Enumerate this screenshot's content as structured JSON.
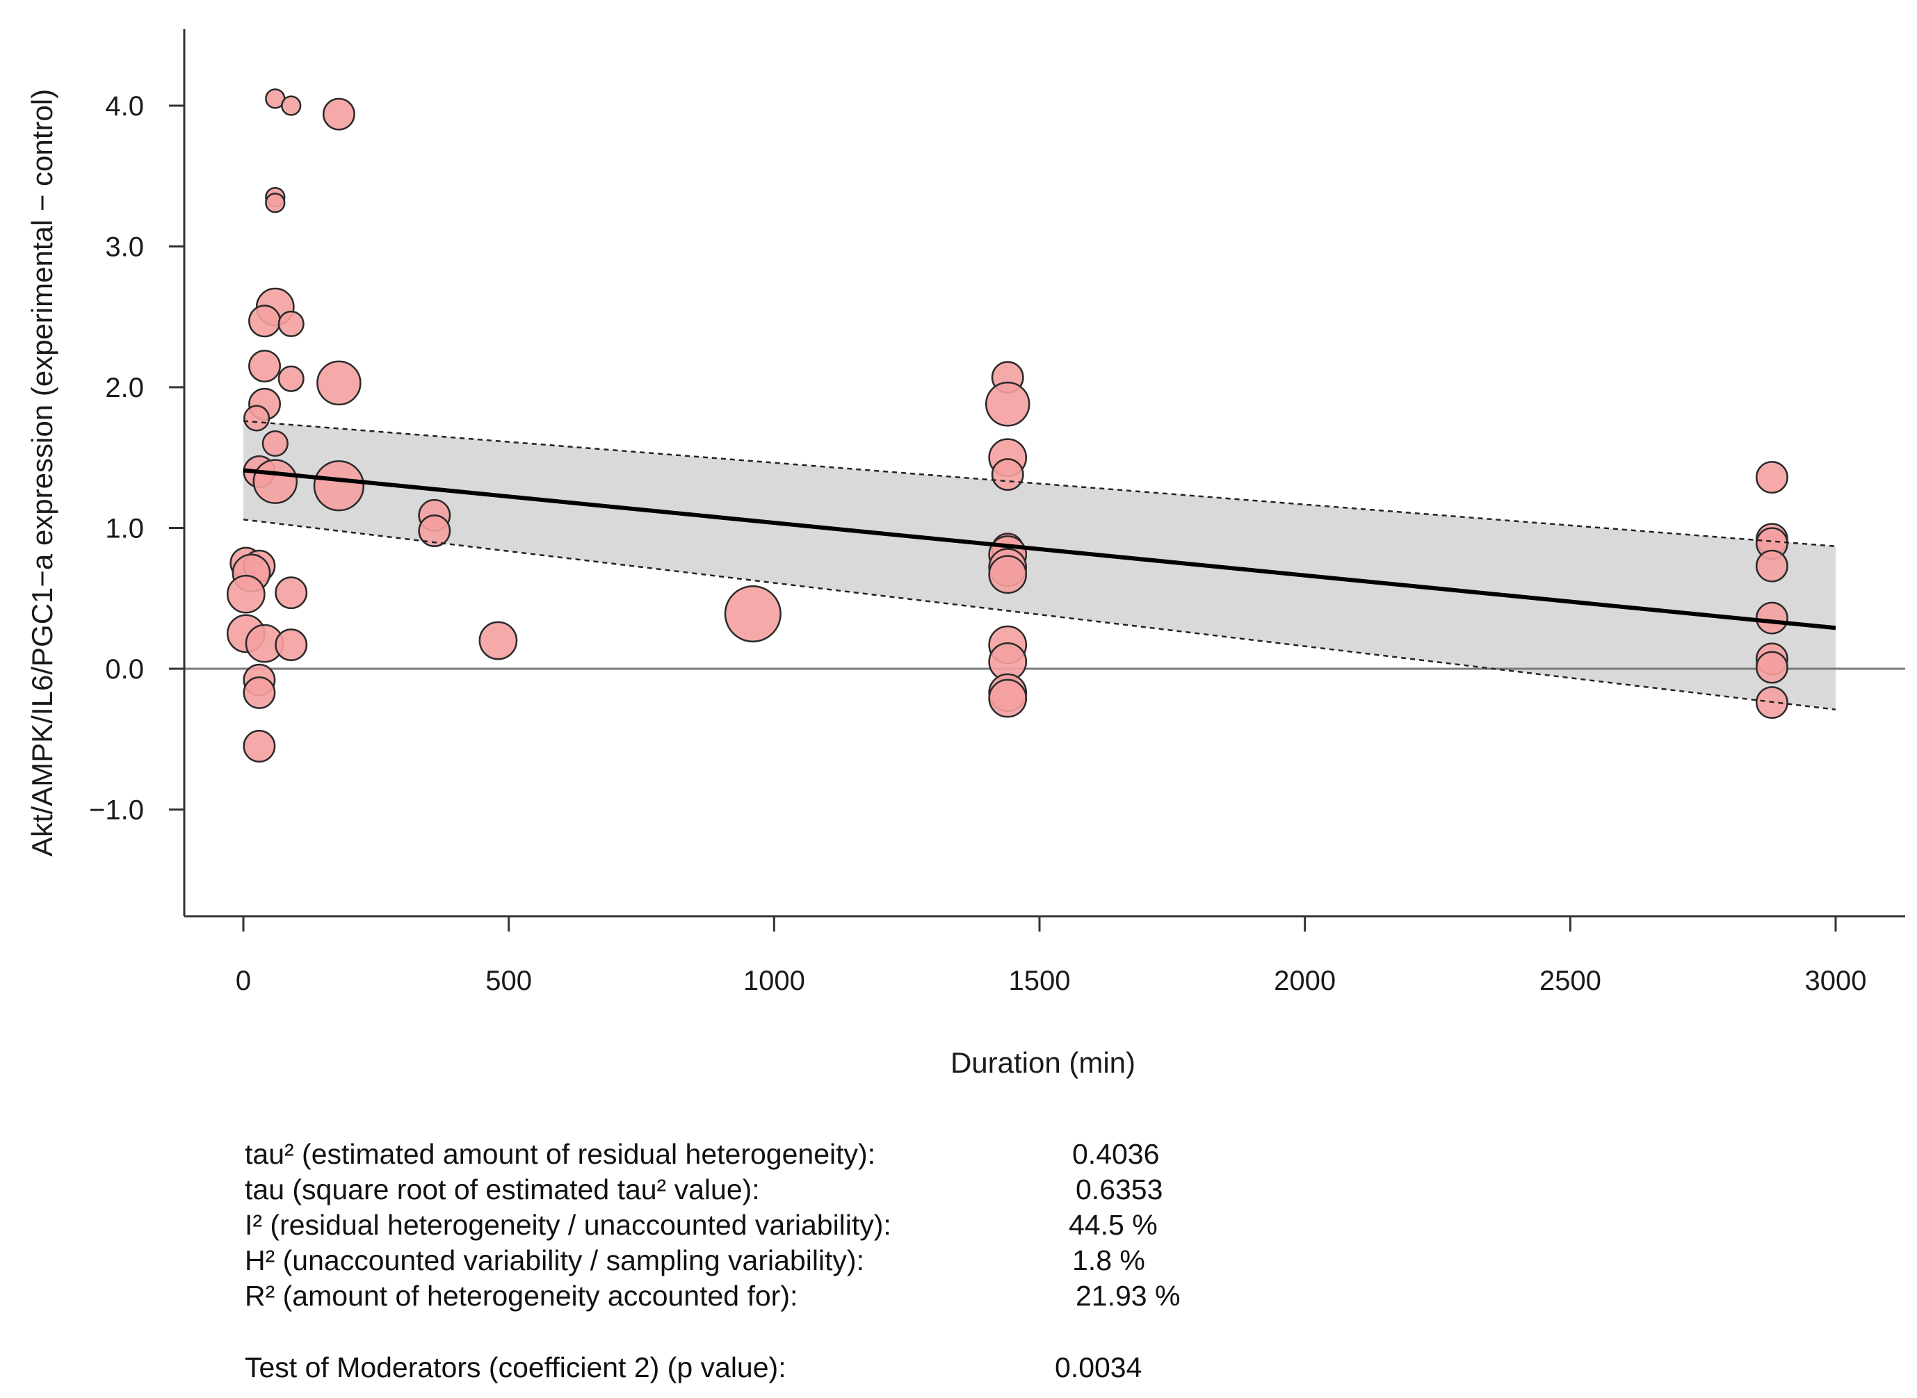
{
  "colors": {
    "point_fill": "#f5a0a0",
    "point_stroke": "#2a2a2a",
    "band_fill": "#d9d9d9",
    "regression_line": "#000000",
    "zero_line": "#7a7a7a",
    "axis": "#333333"
  },
  "chart_data": {
    "type": "scatter",
    "title": "",
    "xlabel": "Duration (min)",
    "ylabel": "Akt/AMPK/IL6/PGC1−a expression (experimental − control)",
    "xlim": [
      -120,
      3120
    ],
    "ylim": [
      -1.75,
      4.65
    ],
    "x_ticks": [
      0,
      500,
      1000,
      1500,
      2000,
      2500,
      3000
    ],
    "x_tick_labels": [
      "0",
      "500",
      "1000",
      "1500",
      "2000",
      "2500",
      "3000"
    ],
    "y_ticks": [
      -1.0,
      0.0,
      1.0,
      2.0,
      3.0,
      4.0
    ],
    "y_tick_labels": [
      "−1.0",
      "0.0",
      "1.0",
      "2.0",
      "3.0",
      "4.0"
    ],
    "grid": false,
    "reference_line_y": 0.0,
    "regression": {
      "x": [
        0,
        3000
      ],
      "y": [
        1.41,
        0.29
      ],
      "ci_lower": [
        1.06,
        -0.29
      ],
      "ci_upper": [
        1.76,
        0.87
      ]
    },
    "points": [
      {
        "x": 60,
        "y": 4.05,
        "size": 1
      },
      {
        "x": 90,
        "y": 4.0,
        "size": 1
      },
      {
        "x": 180,
        "y": 3.94,
        "size": 3
      },
      {
        "x": 60,
        "y": 3.35,
        "size": 1
      },
      {
        "x": 60,
        "y": 3.31,
        "size": 1
      },
      {
        "x": 60,
        "y": 2.57,
        "size": 4
      },
      {
        "x": 40,
        "y": 2.47,
        "size": 3
      },
      {
        "x": 90,
        "y": 2.45,
        "size": 2
      },
      {
        "x": 40,
        "y": 2.15,
        "size": 3
      },
      {
        "x": 90,
        "y": 2.06,
        "size": 2
      },
      {
        "x": 180,
        "y": 2.03,
        "size": 5
      },
      {
        "x": 40,
        "y": 1.88,
        "size": 3
      },
      {
        "x": 25,
        "y": 1.78,
        "size": 2
      },
      {
        "x": 60,
        "y": 1.6,
        "size": 2
      },
      {
        "x": 30,
        "y": 1.4,
        "size": 3
      },
      {
        "x": 60,
        "y": 1.33,
        "size": 5
      },
      {
        "x": 180,
        "y": 1.3,
        "size": 6
      },
      {
        "x": 360,
        "y": 1.09,
        "size": 3
      },
      {
        "x": 360,
        "y": 0.98,
        "size": 3
      },
      {
        "x": 5,
        "y": 0.75,
        "size": 3
      },
      {
        "x": 30,
        "y": 0.73,
        "size": 3
      },
      {
        "x": 15,
        "y": 0.68,
        "size": 4
      },
      {
        "x": 5,
        "y": 0.53,
        "size": 4
      },
      {
        "x": 90,
        "y": 0.54,
        "size": 3
      },
      {
        "x": 5,
        "y": 0.25,
        "size": 4
      },
      {
        "x": 40,
        "y": 0.18,
        "size": 4
      },
      {
        "x": 90,
        "y": 0.17,
        "size": 3
      },
      {
        "x": 480,
        "y": 0.2,
        "size": 4
      },
      {
        "x": 960,
        "y": 0.39,
        "size": 7
      },
      {
        "x": 30,
        "y": -0.08,
        "size": 3
      },
      {
        "x": 30,
        "y": -0.17,
        "size": 3
      },
      {
        "x": 30,
        "y": -0.55,
        "size": 3
      },
      {
        "x": 1440,
        "y": 2.07,
        "size": 3
      },
      {
        "x": 1440,
        "y": 1.88,
        "size": 5
      },
      {
        "x": 1440,
        "y": 1.5,
        "size": 4
      },
      {
        "x": 1440,
        "y": 1.38,
        "size": 3
      },
      {
        "x": 1440,
        "y": 0.85,
        "size": 3
      },
      {
        "x": 1440,
        "y": 0.81,
        "size": 4
      },
      {
        "x": 1440,
        "y": 0.72,
        "size": 4
      },
      {
        "x": 1440,
        "y": 0.67,
        "size": 4
      },
      {
        "x": 1440,
        "y": 0.17,
        "size": 4
      },
      {
        "x": 1440,
        "y": 0.05,
        "size": 4
      },
      {
        "x": 1440,
        "y": -0.17,
        "size": 4
      },
      {
        "x": 1440,
        "y": -0.21,
        "size": 4
      },
      {
        "x": 2880,
        "y": 1.36,
        "size": 3
      },
      {
        "x": 2880,
        "y": 0.92,
        "size": 3
      },
      {
        "x": 2880,
        "y": 0.89,
        "size": 3
      },
      {
        "x": 2880,
        "y": 0.73,
        "size": 3
      },
      {
        "x": 2880,
        "y": 0.36,
        "size": 3
      },
      {
        "x": 2880,
        "y": 0.07,
        "size": 3
      },
      {
        "x": 2880,
        "y": 0.01,
        "size": 3
      },
      {
        "x": 2880,
        "y": -0.24,
        "size": 3
      }
    ]
  },
  "stats": {
    "rows": [
      {
        "label": "tau² (estimated amount of residual heterogeneity):",
        "value": "0.4036"
      },
      {
        "label": "tau (square root of estimated tau² value):",
        "value": "0.6353"
      },
      {
        "label": "I² (residual heterogeneity / unaccounted variability):",
        "value": "44.5 %"
      },
      {
        "label": "H² (unaccounted variability / sampling variability):",
        "value": "1.8 %"
      },
      {
        "label": "R² (amount of heterogeneity accounted for):",
        "value": "21.93 %"
      }
    ],
    "test": {
      "label": "Test of Moderators (coefficient 2) (p value):",
      "value": "0.0034"
    }
  }
}
